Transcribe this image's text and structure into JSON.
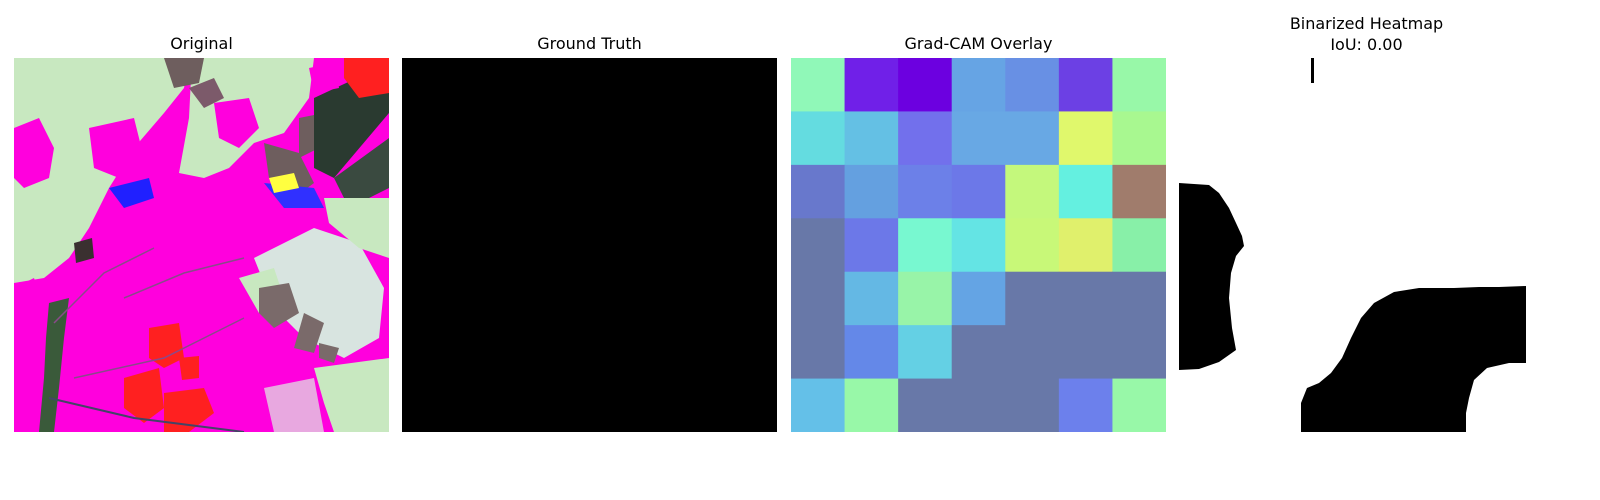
{
  "panels": {
    "original": {
      "title": "Original"
    },
    "ground_truth": {
      "title": "Ground Truth",
      "fill": "#000000"
    },
    "gradcam": {
      "title": "Grad-CAM Overlay",
      "grid": [
        [
          "#90f8b8",
          "#7020e8",
          "#6c00e0",
          "#66a4e4",
          "#6890e4",
          "#6c40e4",
          "#98f8a8"
        ],
        [
          "#64dce0",
          "#64c0e4",
          "#7270ec",
          "#68a8e4",
          "#68a8e4",
          "#e0f86c",
          "#a8f890"
        ],
        [
          "#6878cc",
          "#64a0e0",
          "#6c80e8",
          "#6c78e8",
          "#c4f87c",
          "#64f0e0",
          "#a07c6c"
        ],
        [
          "#6878a8",
          "#6c78e8",
          "#78f8d0",
          "#64e4e4",
          "#c8f878",
          "#e0f06c",
          "#88f0a8"
        ],
        [
          "#6878a8",
          "#64b8e4",
          "#98f4a8",
          "#64a4e4",
          "#6878a8",
          "#6878a8",
          "#6878a8"
        ],
        [
          "#6878a8",
          "#6488e8",
          "#64d0e4",
          "#6878a8",
          "#6878a8",
          "#6878a8",
          "#6878a8"
        ],
        [
          "#64c0e8",
          "#98f8a8",
          "#6878a8",
          "#6878a8",
          "#6878a8",
          "#6c80ec",
          "#98f8a8"
        ]
      ]
    },
    "binarized": {
      "title_lines": [
        "Binarized Heatmap",
        "IoU: 0.00"
      ]
    }
  }
}
